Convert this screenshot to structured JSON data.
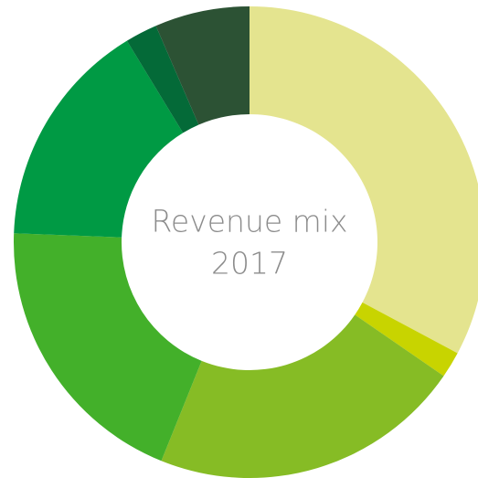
{
  "chart_data": {
    "type": "donut",
    "title_lines": [
      "Revenue mix",
      "2017"
    ],
    "values": [
      32.8,
      1.8,
      21.5,
      19.5,
      15.7,
      2.2,
      6.5
    ],
    "colors": [
      "#e4e48f",
      "#c8d400",
      "#86bc25",
      "#43b02a",
      "#009a44",
      "#046a38",
      "#2c5234"
    ]
  }
}
